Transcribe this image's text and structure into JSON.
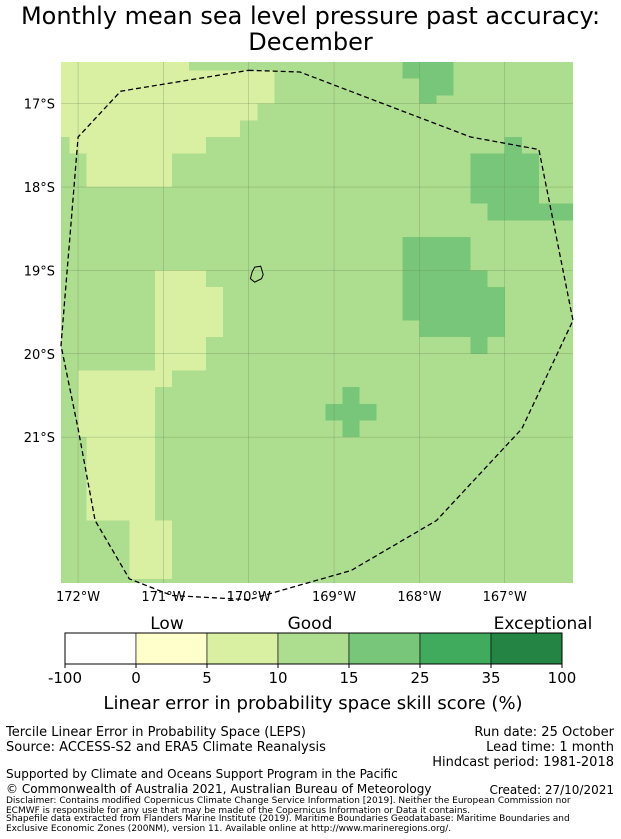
{
  "title": {
    "line1": "Monthly mean sea level pressure past accuracy:",
    "line2": "December"
  },
  "map": {
    "lat_labels": [
      "17°S",
      "18°S",
      "19°S",
      "20°S",
      "21°S"
    ],
    "lon_labels": [
      "172°W",
      "171°W",
      "170°W",
      "169°W",
      "168°W",
      "167°W"
    ],
    "lat_values": [
      -17,
      -18,
      -19,
      -20,
      -21
    ],
    "lon_values": [
      -172,
      -171,
      -170,
      -169,
      -168,
      -167
    ],
    "category_colors": {
      "c0": "#ffffff",
      "c1": "#ffffcc",
      "c2": "#d9f0a3",
      "c3": "#addd8e",
      "c4": "#78c679",
      "c5": "#41ab5d",
      "c6": "#238443"
    },
    "background_category": "c3",
    "patches": [
      {
        "category": "c2",
        "from_lon": -172.2,
        "to_lon": -170.7,
        "from_lat": -16.5,
        "to_lat": -16.6
      },
      {
        "category": "c2",
        "from_lon": -172.2,
        "to_lon": -169.7,
        "from_lat": -16.6,
        "to_lat": -17.0
      },
      {
        "category": "c2",
        "from_lon": -172.2,
        "to_lon": -169.9,
        "from_lat": -17.0,
        "to_lat": -17.2
      },
      {
        "category": "c2",
        "from_lon": -172.2,
        "to_lon": -170.1,
        "from_lat": -17.2,
        "to_lat": -17.4
      },
      {
        "category": "c2",
        "from_lon": -172.1,
        "to_lon": -170.5,
        "from_lat": -17.4,
        "to_lat": -17.6
      },
      {
        "category": "c2",
        "from_lon": -171.9,
        "to_lon": -170.9,
        "from_lat": -17.6,
        "to_lat": -18.0
      },
      {
        "category": "c2",
        "from_lon": -171.1,
        "to_lon": -170.5,
        "from_lat": -19.0,
        "to_lat": -19.2
      },
      {
        "category": "c2",
        "from_lon": -171.1,
        "to_lon": -170.3,
        "from_lat": -19.2,
        "to_lat": -19.8
      },
      {
        "category": "c2",
        "from_lon": -171.1,
        "to_lon": -170.5,
        "from_lat": -19.8,
        "to_lat": -20.2
      },
      {
        "category": "c2",
        "from_lon": -172.0,
        "to_lon": -170.9,
        "from_lat": -20.2,
        "to_lat": -20.4
      },
      {
        "category": "c2",
        "from_lon": -172.0,
        "to_lon": -171.1,
        "from_lat": -20.4,
        "to_lat": -21.0
      },
      {
        "category": "c2",
        "from_lon": -171.9,
        "to_lon": -171.1,
        "from_lat": -21.0,
        "to_lat": -22.0
      },
      {
        "category": "c2",
        "from_lon": -171.4,
        "to_lon": -170.9,
        "from_lat": -22.0,
        "to_lat": -22.7
      },
      {
        "category": "c4",
        "from_lon": -168.2,
        "to_lon": -167.6,
        "from_lat": -16.5,
        "to_lat": -16.7
      },
      {
        "category": "c4",
        "from_lon": -168.0,
        "to_lon": -167.6,
        "from_lat": -16.7,
        "to_lat": -16.9
      },
      {
        "category": "c4",
        "from_lon": -168.0,
        "to_lon": -167.8,
        "from_lat": -16.9,
        "to_lat": -17.0
      },
      {
        "category": "c4",
        "from_lon": -167.0,
        "to_lon": -166.8,
        "from_lat": -17.4,
        "to_lat": -17.6
      },
      {
        "category": "c4",
        "from_lon": -167.4,
        "to_lon": -166.6,
        "from_lat": -17.6,
        "to_lat": -18.2
      },
      {
        "category": "c4",
        "from_lon": -167.2,
        "to_lon": -166.2,
        "from_lat": -18.2,
        "to_lat": -18.4
      },
      {
        "category": "c4",
        "from_lon": -168.2,
        "to_lon": -167.4,
        "from_lat": -18.6,
        "to_lat": -19.0
      },
      {
        "category": "c4",
        "from_lon": -168.2,
        "to_lon": -167.2,
        "from_lat": -19.0,
        "to_lat": -19.2
      },
      {
        "category": "c4",
        "from_lon": -168.2,
        "to_lon": -167.0,
        "from_lat": -19.2,
        "to_lat": -19.6
      },
      {
        "category": "c4",
        "from_lon": -168.0,
        "to_lon": -167.0,
        "from_lat": -19.6,
        "to_lat": -19.8
      },
      {
        "category": "c4",
        "from_lon": -167.4,
        "to_lon": -167.2,
        "from_lat": -19.8,
        "to_lat": -20.0
      },
      {
        "category": "c4",
        "from_lon": -168.9,
        "to_lon": -168.7,
        "from_lat": -20.4,
        "to_lat": -21.0
      },
      {
        "category": "c4",
        "from_lon": -169.1,
        "to_lon": -168.5,
        "from_lat": -20.6,
        "to_lat": -20.8
      }
    ],
    "region_outline": [
      [
        -170.0,
        -16.6
      ],
      [
        -169.4,
        -16.62
      ],
      [
        -167.4,
        -17.4
      ],
      [
        -166.6,
        -17.55
      ],
      [
        -166.2,
        -19.6
      ],
      [
        -166.8,
        -20.9
      ],
      [
        -167.8,
        -22.0
      ],
      [
        -168.8,
        -22.6
      ],
      [
        -170.0,
        -22.95
      ],
      [
        -170.9,
        -22.9
      ],
      [
        -171.4,
        -22.7
      ],
      [
        -171.8,
        -22.0
      ],
      [
        -172.0,
        -20.9
      ],
      [
        -172.2,
        -19.9
      ],
      [
        -172.0,
        -17.4
      ],
      [
        -171.5,
        -16.85
      ],
      [
        -171.2,
        -16.8
      ]
    ],
    "island_outline": [
      [
        -169.93,
        -18.96
      ],
      [
        -169.86,
        -18.95
      ],
      [
        -169.83,
        -19.05
      ],
      [
        -169.85,
        -19.1
      ],
      [
        -169.93,
        -19.14
      ],
      [
        -169.98,
        -19.1
      ],
      [
        -169.96,
        -19.02
      ]
    ]
  },
  "colorbar": {
    "bins": [
      {
        "from": -100,
        "to": 0,
        "category": "c0"
      },
      {
        "from": 0,
        "to": 5,
        "category": "c1"
      },
      {
        "from": 5,
        "to": 10,
        "category": "c2"
      },
      {
        "from": 10,
        "to": 15,
        "category": "c3"
      },
      {
        "from": 15,
        "to": 25,
        "category": "c4"
      },
      {
        "from": 25,
        "to": 35,
        "category": "c5"
      },
      {
        "from": 35,
        "to": 100,
        "category": "c6"
      }
    ],
    "tick_labels": [
      "-100",
      "0",
      "5",
      "10",
      "15",
      "25",
      "35",
      "100"
    ],
    "category_labels": {
      "low": "Low",
      "good": "Good",
      "exceptional": "Exceptional"
    },
    "axis_label": "Linear error in probability space skill score (%)"
  },
  "info": {
    "method": "Tercile Linear Error in Probability Space (LEPS)",
    "source": "Source: ACCESS-S2 and ERA5 Climate Reanalysis",
    "run_date": "Run date: 25 October",
    "lead_time": "Lead time: 1 month",
    "hindcast": "Hindcast period: 1981-2018",
    "supported_by": "Supported by Climate and Oceans Support Program in the Pacific",
    "copyright": "© Commonwealth of Australia 2021, Australian Bureau of Meteorology",
    "created": "Created: 27/10/2021",
    "disclaimer_line1": "Disclaimer: Contains modified Copernicus Climate Change Service Information [2019]. Neither the European Commission nor",
    "disclaimer_line2": "ECMWF is responsible for any use that may be made of the Copernicus Information or Data it contains.",
    "shapefile_line1": "Shapefile data extracted from Flanders Marine Institute (2019). Maritime Boundaries Geodatabase: Maritime Boundaries and",
    "shapefile_line2": "Exclusive Economic Zones (200NM), version 11. Available online at http://www.marineregions.org/."
  }
}
